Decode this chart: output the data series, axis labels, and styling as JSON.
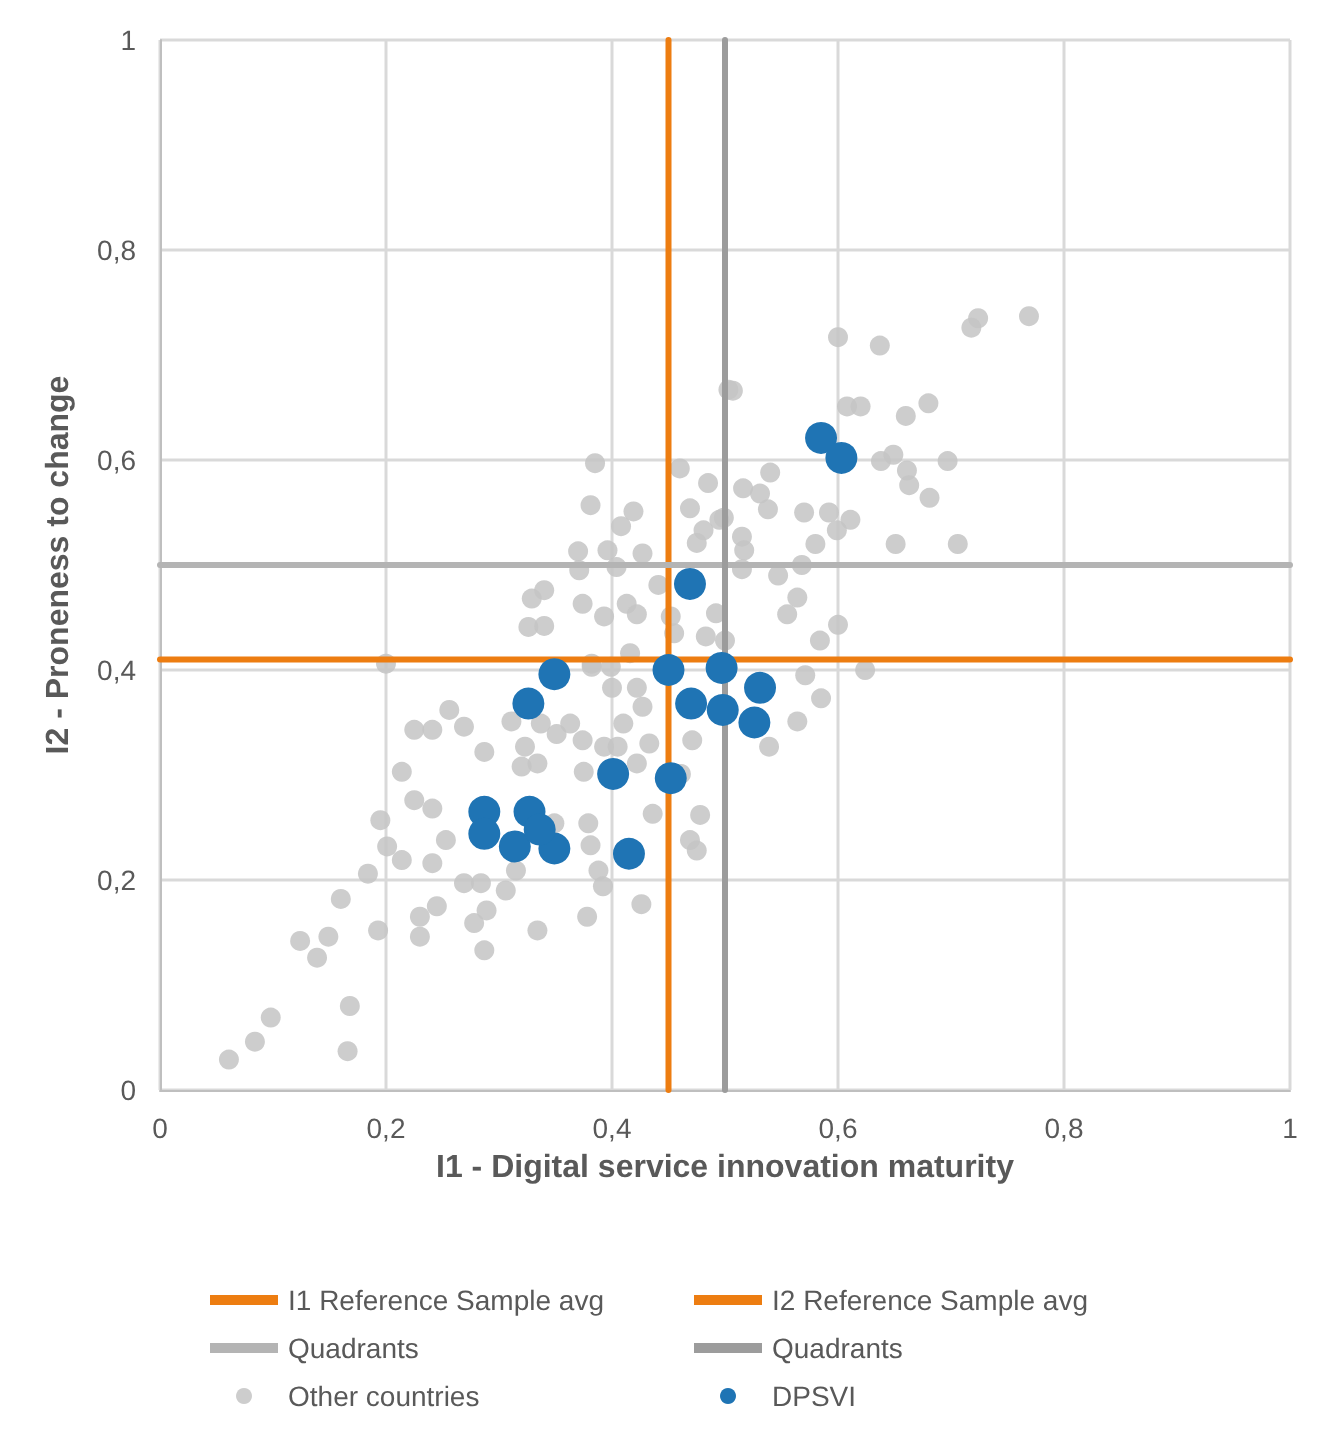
{
  "chart_data": {
    "type": "scatter",
    "xlabel": "I1 - Digital service innovation maturity",
    "ylabel": "I2 - Proneness to change",
    "xlim": [
      0,
      1
    ],
    "xticks": [
      0,
      {
        "value": 0.2,
        "label": "0,2"
      },
      {
        "value": 0.4,
        "label": "0,4"
      },
      {
        "value": 0.6,
        "label": "0,6"
      },
      {
        "value": 0.8,
        "label": "0,8"
      },
      1
    ],
    "ylim": [
      0,
      1
    ],
    "yticks": [
      0,
      {
        "value": 0.2,
        "label": "0,2"
      },
      {
        "value": 0.4,
        "label": "0,4"
      },
      {
        "value": 0.6,
        "label": "0,6"
      },
      {
        "value": 0.8,
        "label": "0,8"
      },
      1
    ],
    "grid": true,
    "legend": "bottom",
    "marker": "circle",
    "ref_lines": [
      {
        "axis": "x",
        "value": 0.45,
        "label": "I1 Reference Sample avg",
        "color": "#ed7d11"
      },
      {
        "axis": "y",
        "value": 0.41,
        "label": "I2 Reference Sample avg",
        "color": "#ed7d11"
      },
      {
        "axis": "y",
        "value": 0.5,
        "label": "Quadrants",
        "color": "#b4b4b4"
      },
      {
        "axis": "x",
        "value": 0.5,
        "label": "Quadrants",
        "color": "#9c9c9c"
      }
    ],
    "series": [
      {
        "name": "Other countries",
        "color": "#c4c4c4",
        "x": [
          0.061,
          0.084,
          0.098,
          0.166,
          0.168,
          0.124,
          0.139,
          0.149,
          0.16,
          0.193,
          0.184,
          0.195,
          0.201,
          0.214,
          0.214,
          0.225,
          0.241,
          0.225,
          0.241,
          0.256,
          0.269,
          0.253,
          0.241,
          0.23,
          0.23,
          0.245,
          0.269,
          0.278,
          0.287,
          0.289,
          0.306,
          0.284,
          0.287,
          0.311,
          0.323,
          0.334,
          0.32,
          0.337,
          0.351,
          0.363,
          0.374,
          0.375,
          0.379,
          0.381,
          0.388,
          0.392,
          0.378,
          0.334,
          0.349,
          0.315,
          0.4,
          0.393,
          0.41,
          0.422,
          0.427,
          0.433,
          0.436,
          0.426,
          0.422,
          0.469,
          0.478,
          0.475,
          0.461,
          0.471,
          0.405,
          0.2,
          0.382,
          0.399,
          0.385,
          0.381,
          0.46,
          0.419,
          0.408,
          0.469,
          0.485,
          0.481,
          0.475,
          0.37,
          0.396,
          0.427,
          0.404,
          0.371,
          0.329,
          0.34,
          0.374,
          0.413,
          0.393,
          0.422,
          0.326,
          0.34,
          0.441,
          0.452,
          0.483,
          0.416,
          0.382,
          0.503,
          0.495,
          0.492,
          0.455,
          0.507,
          0.6,
          0.637,
          0.724,
          0.718,
          0.769,
          0.608,
          0.62,
          0.66,
          0.68,
          0.638,
          0.649,
          0.661,
          0.663,
          0.697,
          0.681,
          0.54,
          0.516,
          0.531,
          0.538,
          0.499,
          0.57,
          0.592,
          0.611,
          0.599,
          0.58,
          0.515,
          0.517,
          0.651,
          0.706,
          0.568,
          0.547,
          0.515,
          0.564,
          0.555,
          0.6,
          0.584,
          0.5,
          0.571,
          0.624,
          0.585,
          0.564,
          0.539
        ],
        "values": [
          0.029,
          0.046,
          0.069,
          0.037,
          0.08,
          0.142,
          0.126,
          0.146,
          0.182,
          0.152,
          0.206,
          0.257,
          0.232,
          0.219,
          0.303,
          0.276,
          0.268,
          0.343,
          0.343,
          0.362,
          0.346,
          0.238,
          0.216,
          0.165,
          0.146,
          0.175,
          0.197,
          0.159,
          0.133,
          0.171,
          0.19,
          0.197,
          0.322,
          0.351,
          0.327,
          0.311,
          0.308,
          0.349,
          0.339,
          0.349,
          0.333,
          0.303,
          0.254,
          0.233,
          0.209,
          0.194,
          0.165,
          0.152,
          0.254,
          0.209,
          0.383,
          0.327,
          0.349,
          0.383,
          0.365,
          0.33,
          0.263,
          0.177,
          0.311,
          0.238,
          0.262,
          0.228,
          0.301,
          0.333,
          0.327,
          0.406,
          0.403,
          0.403,
          0.597,
          0.557,
          0.592,
          0.551,
          0.537,
          0.554,
          0.578,
          0.533,
          0.521,
          0.513,
          0.514,
          0.511,
          0.498,
          0.495,
          0.468,
          0.476,
          0.463,
          0.463,
          0.451,
          0.453,
          0.441,
          0.442,
          0.481,
          0.451,
          0.432,
          0.416,
          0.406,
          0.667,
          0.543,
          0.454,
          0.435,
          0.666,
          0.717,
          0.709,
          0.735,
          0.726,
          0.737,
          0.651,
          0.651,
          0.642,
          0.654,
          0.599,
          0.605,
          0.59,
          0.576,
          0.599,
          0.564,
          0.588,
          0.573,
          0.568,
          0.553,
          0.545,
          0.55,
          0.55,
          0.543,
          0.533,
          0.52,
          0.527,
          0.514,
          0.52,
          0.52,
          0.5,
          0.49,
          0.496,
          0.469,
          0.453,
          0.443,
          0.428,
          0.428,
          0.395,
          0.4,
          0.373,
          0.351,
          0.327
        ]
      },
      {
        "name": "DPSVI",
        "color": "#1f74b4",
        "x": [
          0.585,
          0.603,
          0.469,
          0.45,
          0.497,
          0.531,
          0.349,
          0.326,
          0.47,
          0.498,
          0.526,
          0.401,
          0.452,
          0.287,
          0.287,
          0.327,
          0.314,
          0.349,
          0.336,
          0.415
        ],
        "values": [
          0.621,
          0.602,
          0.482,
          0.4,
          0.402,
          0.383,
          0.396,
          0.368,
          0.368,
          0.362,
          0.35,
          0.301,
          0.297,
          0.265,
          0.244,
          0.265,
          0.232,
          0.23,
          0.248,
          0.225
        ]
      }
    ]
  }
}
